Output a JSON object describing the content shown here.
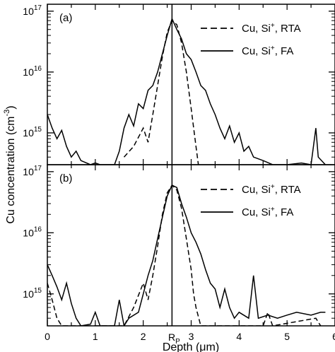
{
  "chart_data": {
    "type": "line",
    "figure": {
      "xlabel_prefix": "Depth (",
      "xlabel_unit": "μm",
      "xlabel_suffix": ")",
      "ylabel_prefix": "Cu concentration (cm",
      "ylabel_exp": "-3",
      "ylabel_suffix": ")",
      "xlim": [
        0,
        6
      ],
      "x_ticks": [
        "0",
        "1",
        "2",
        "3",
        "4",
        "5",
        "6"
      ],
      "rp_label_main": "R",
      "rp_label_sub": "P",
      "rp_depth": 2.6
    },
    "panels": [
      {
        "label": "(a)",
        "yscale": "log",
        "ylim": [
          300000000000000.0,
          1.3e+17
        ],
        "y_ticks": [
          {
            "base": "10",
            "exp": "15",
            "v": 1000000000000000.0
          },
          {
            "base": "10",
            "exp": "16",
            "v": 1e+16
          },
          {
            "base": "10",
            "exp": "17",
            "v": 1e+17
          }
        ],
        "series": [
          {
            "name_prefix": "Cu, Si",
            "name_sup": "+",
            "name_suffix": ", RTA",
            "style": "dashed",
            "points": [
              [
                1.6,
                400000000000000.0
              ],
              [
                1.8,
                600000000000000.0
              ],
              [
                2.0,
                1200000000000000.0
              ],
              [
                2.1,
                700000000000000.0
              ],
              [
                2.2,
                2000000000000000.0
              ],
              [
                2.3,
                6000000000000000.0
              ],
              [
                2.4,
                1.8e+16
              ],
              [
                2.5,
                4.5e+16
              ],
              [
                2.6,
                7e+16
              ],
              [
                2.7,
                6e+16
              ],
              [
                2.8,
                3e+16
              ],
              [
                2.9,
                1e+16
              ],
              [
                3.0,
                2500000000000000.0
              ],
              [
                3.1,
                600000000000000.0
              ],
              [
                3.15,
                300000000000000.0
              ]
            ]
          },
          {
            "name_prefix": "Cu, Si",
            "name_sup": "+",
            "name_suffix": ", FA",
            "style": "solid",
            "points": [
              [
                0.0,
                2000000000000000.0
              ],
              [
                0.1,
                1200000000000000.0
              ],
              [
                0.2,
                800000000000000.0
              ],
              [
                0.3,
                1100000000000000.0
              ],
              [
                0.4,
                600000000000000.0
              ],
              [
                0.5,
                400000000000000.0
              ],
              [
                0.6,
                500000000000000.0
              ],
              [
                0.7,
                350000000000000.0
              ],
              [
                0.9,
                300000000000000.0
              ],
              [
                1.0,
                320000000000000.0
              ],
              [
                1.1,
                300000000000000.0
              ],
              [
                1.4,
                300000000000000.0
              ],
              [
                1.5,
                500000000000000.0
              ],
              [
                1.6,
                1200000000000000.0
              ],
              [
                1.7,
                2000000000000000.0
              ],
              [
                1.8,
                1300000000000000.0
              ],
              [
                1.9,
                3000000000000000.0
              ],
              [
                2.0,
                2500000000000000.0
              ],
              [
                2.1,
                5000000000000000.0
              ],
              [
                2.2,
                6000000000000000.0
              ],
              [
                2.3,
                1e+16
              ],
              [
                2.4,
                2e+16
              ],
              [
                2.5,
                4e+16
              ],
              [
                2.6,
                7.5e+16
              ],
              [
                2.7,
                5e+16
              ],
              [
                2.8,
                3.5e+16
              ],
              [
                2.9,
                2e+16
              ],
              [
                3.0,
                1.6e+16
              ],
              [
                3.1,
                1e+16
              ],
              [
                3.2,
                6000000000000000.0
              ],
              [
                3.3,
                5000000000000000.0
              ],
              [
                3.4,
                3000000000000000.0
              ],
              [
                3.5,
                2000000000000000.0
              ],
              [
                3.6,
                1200000000000000.0
              ],
              [
                3.7,
                800000000000000.0
              ],
              [
                3.8,
                1300000000000000.0
              ],
              [
                3.9,
                700000000000000.0
              ],
              [
                4.0,
                1000000000000000.0
              ],
              [
                4.1,
                500000000000000.0
              ],
              [
                4.2,
                600000000000000.0
              ],
              [
                4.3,
                400000000000000.0
              ],
              [
                4.5,
                350000000000000.0
              ],
              [
                4.7,
                300000000000000.0
              ],
              [
                5.0,
                300000000000000.0
              ],
              [
                5.3,
                320000000000000.0
              ],
              [
                5.5,
                300000000000000.0
              ],
              [
                5.6,
                1200000000000000.0
              ],
              [
                5.65,
                400000000000000.0
              ],
              [
                5.8,
                300000000000000.0
              ]
            ]
          }
        ]
      },
      {
        "label": "(b)",
        "yscale": "log",
        "ylim": [
          300000000000000.0,
          1.3e+17
        ],
        "y_ticks": [
          {
            "base": "10",
            "exp": "15",
            "v": 1000000000000000.0
          },
          {
            "base": "10",
            "exp": "16",
            "v": 1e+16
          },
          {
            "base": "10",
            "exp": "17",
            "v": 1e+17
          }
        ],
        "series": [
          {
            "name_prefix": "Cu, Si",
            "name_sup": "+",
            "name_suffix": ", RTA",
            "style": "dashed",
            "points": [
              [
                0.0,
                1500000000000000.0
              ],
              [
                0.1,
                800000000000000.0
              ],
              [
                0.2,
                400000000000000.0
              ],
              [
                0.3,
                300000000000000.0
              ],
              [
                1.6,
                300000000000000.0
              ],
              [
                1.8,
                600000000000000.0
              ],
              [
                2.0,
                1500000000000000.0
              ],
              [
                2.1,
                800000000000000.0
              ],
              [
                2.2,
                2000000000000000.0
              ],
              [
                2.3,
                6000000000000000.0
              ],
              [
                2.4,
                2e+16
              ],
              [
                2.5,
                4.5e+16
              ],
              [
                2.6,
                6e+16
              ],
              [
                2.7,
                5e+16
              ],
              [
                2.8,
                2.5e+16
              ],
              [
                2.9,
                8000000000000000.0
              ],
              [
                3.0,
                2500000000000000.0
              ],
              [
                3.05,
                1000000000000000.0
              ],
              [
                3.1,
                600000000000000.0
              ],
              [
                3.2,
                300000000000000.0
              ],
              [
                4.5,
                300000000000000.0
              ],
              [
                4.6,
                500000000000000.0
              ],
              [
                4.7,
                300000000000000.0
              ],
              [
                5.6,
                400000000000000.0
              ],
              [
                5.7,
                300000000000000.0
              ]
            ]
          },
          {
            "name_prefix": "Cu, Si",
            "name_sup": "+",
            "name_suffix": ", FA",
            "style": "solid",
            "points": [
              [
                0.0,
                3000000000000000.0
              ],
              [
                0.1,
                2000000000000000.0
              ],
              [
                0.2,
                1300000000000000.0
              ],
              [
                0.3,
                800000000000000.0
              ],
              [
                0.4,
                1500000000000000.0
              ],
              [
                0.5,
                700000000000000.0
              ],
              [
                0.6,
                400000000000000.0
              ],
              [
                0.7,
                300000000000000.0
              ],
              [
                0.9,
                320000000000000.0
              ],
              [
                1.0,
                500000000000000.0
              ],
              [
                1.1,
                300000000000000.0
              ],
              [
                1.4,
                300000000000000.0
              ],
              [
                1.5,
                800000000000000.0
              ],
              [
                1.6,
                300000000000000.0
              ],
              [
                1.7,
                400000000000000.0
              ],
              [
                1.9,
                500000000000000.0
              ],
              [
                2.0,
                1000000000000000.0
              ],
              [
                2.1,
                2000000000000000.0
              ],
              [
                2.2,
                3500000000000000.0
              ],
              [
                2.3,
                8000000000000000.0
              ],
              [
                2.4,
                1.8e+16
              ],
              [
                2.5,
                4e+16
              ],
              [
                2.6,
                6e+16
              ],
              [
                2.7,
                5.5e+16
              ],
              [
                2.8,
                3e+16
              ],
              [
                2.9,
                1.8e+16
              ],
              [
                3.0,
                1e+16
              ],
              [
                3.1,
                7000000000000000.0
              ],
              [
                3.2,
                4500000000000000.0
              ],
              [
                3.3,
                2500000000000000.0
              ],
              [
                3.4,
                1500000000000000.0
              ],
              [
                3.5,
                1200000000000000.0
              ],
              [
                3.6,
                600000000000000.0
              ],
              [
                3.7,
                1200000000000000.0
              ],
              [
                3.8,
                600000000000000.0
              ],
              [
                3.9,
                400000000000000.0
              ],
              [
                4.0,
                500000000000000.0
              ],
              [
                4.2,
                400000000000000.0
              ],
              [
                4.3,
                2000000000000000.0
              ],
              [
                4.4,
                400000000000000.0
              ],
              [
                4.6,
                450000000000000.0
              ],
              [
                4.8,
                400000000000000.0
              ],
              [
                5.0,
                450000000000000.0
              ],
              [
                5.2,
                500000000000000.0
              ],
              [
                5.5,
                450000000000000.0
              ],
              [
                5.7,
                500000000000000.0
              ],
              [
                5.8,
                500000000000000.0
              ]
            ]
          }
        ]
      }
    ]
  }
}
